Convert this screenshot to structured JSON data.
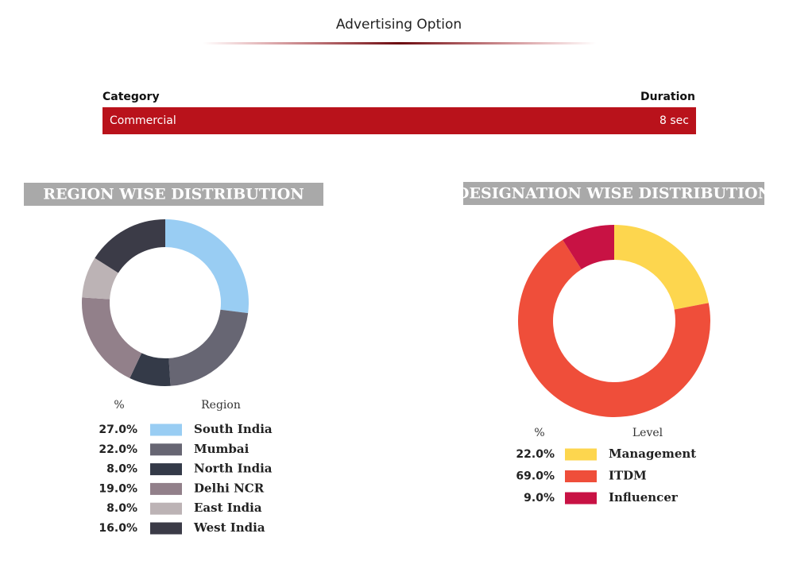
{
  "header": {
    "title": "Advertising Option"
  },
  "table": {
    "columns": [
      "Category",
      "Duration"
    ],
    "rows": [
      [
        "Commercial",
        "8 sec"
      ]
    ]
  },
  "chart_data": [
    {
      "type": "donut",
      "title": "REGION WISE DISTRIBUTION",
      "legend_headers": [
        "%",
        "Region"
      ],
      "categories": [
        "South India",
        "Mumbai",
        "North India",
        "Delhi NCR",
        "East India",
        "West India"
      ],
      "values": [
        27,
        22,
        8,
        19,
        8,
        16
      ],
      "value_labels": [
        "27.0%",
        "22.0%",
        "8.0%",
        "19.0%",
        "8.0%",
        "16.0%"
      ],
      "colors": [
        "#99cdf3",
        "#676673",
        "#343a48",
        "#92808a",
        "#bcb3b5",
        "#3b3b47"
      ]
    },
    {
      "type": "donut",
      "title": "DESIGNATION WISE DISTRIBUTION",
      "legend_headers": [
        "%",
        "Level"
      ],
      "categories": [
        "Management",
        "ITDM",
        "Influencer"
      ],
      "values": [
        22,
        69,
        9
      ],
      "value_labels": [
        "22.0%",
        "69.0%",
        "9.0%"
      ],
      "colors": [
        "#fdd64e",
        "#ef4e3a",
        "#c81244"
      ]
    }
  ]
}
